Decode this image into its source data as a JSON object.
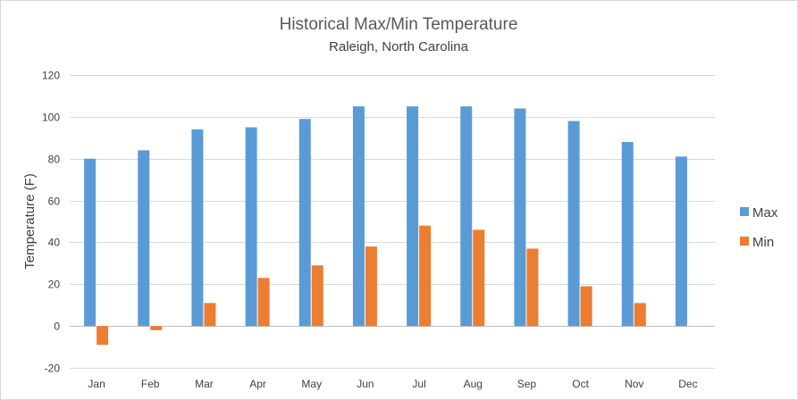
{
  "chart_data": {
    "type": "bar",
    "title": "Historical Max/Min Temperature",
    "subtitle": "Raleigh, North Carolina",
    "xlabel": "",
    "ylabel": "Temperature (F)",
    "ylim": [
      -20,
      120
    ],
    "yticks": [
      -20,
      0,
      20,
      40,
      60,
      80,
      100,
      120
    ],
    "categories": [
      "Jan",
      "Feb",
      "Mar",
      "Apr",
      "May",
      "Jun",
      "Jul",
      "Aug",
      "Sep",
      "Oct",
      "Nov",
      "Dec"
    ],
    "series": [
      {
        "name": "Max",
        "color": "#5b9bd5",
        "values": [
          80,
          84,
          94,
          95,
          99,
          105,
          105,
          105,
          104,
          98,
          88,
          81
        ]
      },
      {
        "name": "Min",
        "color": "#ed7d31",
        "values": [
          -9,
          -2,
          11,
          23,
          29,
          38,
          48,
          46,
          37,
          19,
          11,
          null
        ]
      }
    ],
    "grid": true,
    "legend_position": "right",
    "colors": {
      "gridline": "#d9d9d9",
      "axis": "#bfbfbf"
    }
  }
}
